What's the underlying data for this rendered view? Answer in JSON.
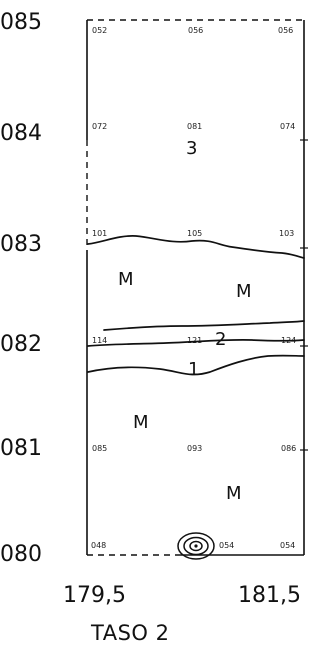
{
  "y_axis_labels": [
    "085",
    "084",
    "083",
    "082",
    "081",
    "080"
  ],
  "x_axis_labels": [
    "179,5",
    "181,5"
  ],
  "footer": "TASO 2",
  "point_labels": {
    "row_085": [
      "052",
      "056",
      "056"
    ],
    "row_084": [
      "072",
      "081",
      "074"
    ],
    "row_083": [
      "101",
      "105",
      "103"
    ],
    "row_082": [
      "114",
      "121",
      "124"
    ],
    "row_081": [
      "085",
      "093",
      "086"
    ],
    "row_080": [
      "048",
      "054",
      "054"
    ]
  },
  "zones": {
    "z3": "3",
    "z2": "2",
    "z1": "1",
    "m1": "M",
    "m2": "M",
    "m3": "M",
    "m4": "M"
  },
  "icons": {
    "marker": "concentric-ring-icon"
  }
}
